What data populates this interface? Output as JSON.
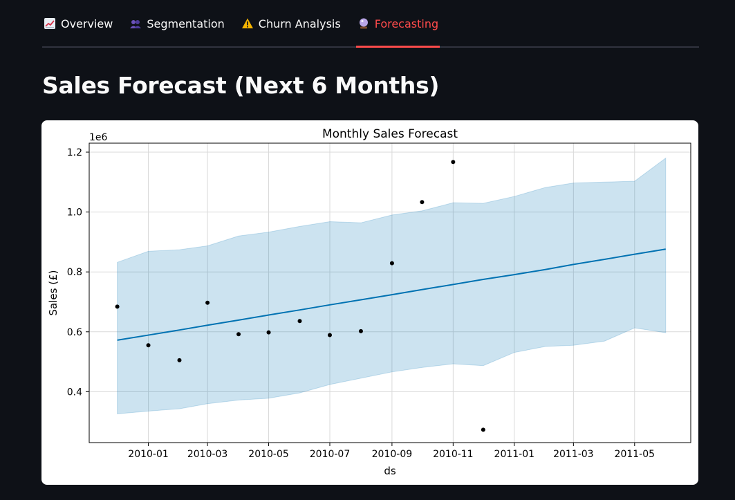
{
  "tabs": [
    {
      "label": "Overview",
      "icon": "chart-increasing-icon",
      "active": false
    },
    {
      "label": "Segmentation",
      "icon": "people-icon",
      "active": false
    },
    {
      "label": "Churn Analysis",
      "icon": "warning-icon",
      "active": false
    },
    {
      "label": "Forecasting",
      "icon": "crystal-ball-icon",
      "active": true
    }
  ],
  "page_title": "Sales Forecast (Next 6 Months)",
  "chart_data": {
    "type": "line",
    "title": "Monthly Sales Forecast",
    "xlabel": "ds",
    "ylabel": "Sales (£)",
    "y_scale_label": "1e6",
    "x_tick_labels": [
      "2010-01",
      "2010-03",
      "2010-05",
      "2010-07",
      "2010-09",
      "2010-11",
      "2011-01",
      "2011-03",
      "2011-05"
    ],
    "y_ticks": [
      0.4,
      0.6,
      0.8,
      1.0,
      1.2
    ],
    "ylim": [
      0.23,
      1.23
    ],
    "xlim": [
      "2009-11-03",
      "2011-06-26"
    ],
    "grid": true,
    "colors": {
      "trend": "#0072b2",
      "band": "#0072b2",
      "points": "#000000"
    },
    "actual": [
      {
        "ds": "2009-12-01",
        "y": 0.684
      },
      {
        "ds": "2010-01-01",
        "y": 0.555
      },
      {
        "ds": "2010-02-01",
        "y": 0.505
      },
      {
        "ds": "2010-03-01",
        "y": 0.697
      },
      {
        "ds": "2010-04-01",
        "y": 0.592
      },
      {
        "ds": "2010-05-01",
        "y": 0.598
      },
      {
        "ds": "2010-06-01",
        "y": 0.636
      },
      {
        "ds": "2010-07-01",
        "y": 0.589
      },
      {
        "ds": "2010-08-01",
        "y": 0.602
      },
      {
        "ds": "2010-09-01",
        "y": 0.829
      },
      {
        "ds": "2010-10-01",
        "y": 1.033
      },
      {
        "ds": "2010-11-01",
        "y": 1.167
      },
      {
        "ds": "2010-12-01",
        "y": 0.273
      }
    ],
    "forecast": [
      {
        "ds": "2009-12-01",
        "yhat": 0.572,
        "lower": 0.326,
        "upper": 0.832
      },
      {
        "ds": "2010-01-01",
        "yhat": 0.589,
        "lower": 0.335,
        "upper": 0.869
      },
      {
        "ds": "2010-02-01",
        "yhat": 0.606,
        "lower": 0.343,
        "upper": 0.874
      },
      {
        "ds": "2010-03-01",
        "yhat": 0.622,
        "lower": 0.36,
        "upper": 0.887
      },
      {
        "ds": "2010-04-01",
        "yhat": 0.639,
        "lower": 0.372,
        "upper": 0.92
      },
      {
        "ds": "2010-05-01",
        "yhat": 0.656,
        "lower": 0.378,
        "upper": 0.933
      },
      {
        "ds": "2010-06-01",
        "yhat": 0.673,
        "lower": 0.396,
        "upper": 0.952
      },
      {
        "ds": "2010-07-01",
        "yhat": 0.69,
        "lower": 0.424,
        "upper": 0.968
      },
      {
        "ds": "2010-08-01",
        "yhat": 0.707,
        "lower": 0.445,
        "upper": 0.964
      },
      {
        "ds": "2010-09-01",
        "yhat": 0.724,
        "lower": 0.466,
        "upper": 0.99
      },
      {
        "ds": "2010-10-01",
        "yhat": 0.741,
        "lower": 0.481,
        "upper": 1.004
      },
      {
        "ds": "2010-11-01",
        "yhat": 0.758,
        "lower": 0.493,
        "upper": 1.031
      },
      {
        "ds": "2010-12-01",
        "yhat": 0.775,
        "lower": 0.487,
        "upper": 1.029
      },
      {
        "ds": "2011-01-01",
        "yhat": 0.791,
        "lower": 0.531,
        "upper": 1.052
      },
      {
        "ds": "2011-02-01",
        "yhat": 0.808,
        "lower": 0.551,
        "upper": 1.082
      },
      {
        "ds": "2011-03-01",
        "yhat": 0.825,
        "lower": 0.555,
        "upper": 1.097
      },
      {
        "ds": "2011-04-01",
        "yhat": 0.842,
        "lower": 0.569,
        "upper": 1.1
      },
      {
        "ds": "2011-05-01",
        "yhat": 0.859,
        "lower": 0.613,
        "upper": 1.103
      },
      {
        "ds": "2011-06-01",
        "yhat": 0.876,
        "lower": 0.597,
        "upper": 1.18
      }
    ]
  }
}
